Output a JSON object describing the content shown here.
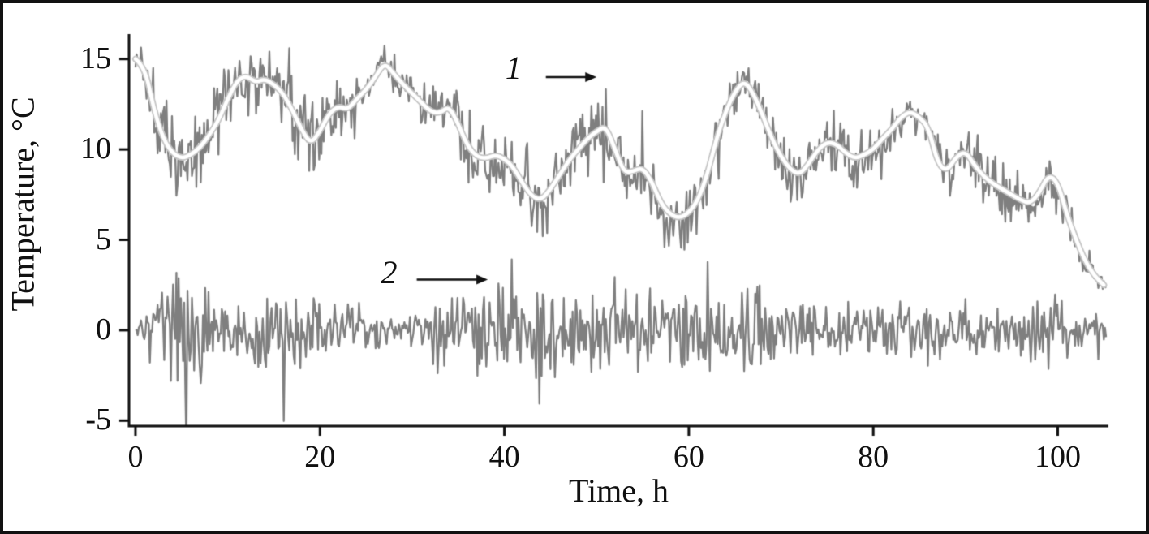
{
  "chart_data": {
    "type": "line",
    "title": "",
    "xlabel": "Time, h",
    "ylabel": "Temperature, °C",
    "xlim": [
      -0.7,
      105.5
    ],
    "ylim": [
      -5.3,
      16.2
    ],
    "x_ticks": [
      0,
      20,
      40,
      60,
      80,
      100
    ],
    "y_ticks": [
      -5,
      0,
      5,
      10,
      15
    ],
    "grid": false,
    "legend": "none",
    "axis_color": "#111111",
    "background": "#ffffff",
    "series": [
      {
        "name": "1",
        "description": "raw noisy temperature signal fluctuating around its smoothed trend",
        "color": "#7f7f7f",
        "seed": 1337,
        "trend": [
          [
            0,
            15
          ],
          [
            1,
            14.6
          ],
          [
            2,
            12.2
          ],
          [
            3,
            10.6
          ],
          [
            4,
            9.8
          ],
          [
            5,
            9.5
          ],
          [
            6,
            9.7
          ],
          [
            7,
            10.1
          ],
          [
            8,
            10.8
          ],
          [
            9,
            11.6
          ],
          [
            10,
            12.8
          ],
          [
            11,
            13.8
          ],
          [
            12,
            14.1
          ],
          [
            13,
            13.7
          ],
          [
            14,
            13.9
          ],
          [
            15,
            13.6
          ],
          [
            16,
            13.1
          ],
          [
            17,
            12.2
          ],
          [
            18,
            11.1
          ],
          [
            19,
            10.3
          ],
          [
            20,
            11
          ],
          [
            21,
            12
          ],
          [
            22,
            12.4
          ],
          [
            23,
            12.2
          ],
          [
            24,
            12.8
          ],
          [
            25,
            13.3
          ],
          [
            26,
            14
          ],
          [
            27,
            14.8
          ],
          [
            28,
            14.2
          ],
          [
            29,
            13.6
          ],
          [
            30,
            13.1
          ],
          [
            31,
            12.6
          ],
          [
            32,
            12.1
          ],
          [
            33,
            12
          ],
          [
            34,
            12.4
          ],
          [
            35,
            11.4
          ],
          [
            36,
            10.2
          ],
          [
            37,
            9.6
          ],
          [
            38,
            9.5
          ],
          [
            39,
            9.7
          ],
          [
            40,
            9.5
          ],
          [
            41,
            9
          ],
          [
            42,
            8.1
          ],
          [
            43,
            7.4
          ],
          [
            44,
            7.2
          ],
          [
            45,
            7.8
          ],
          [
            46,
            8.6
          ],
          [
            47,
            9.4
          ],
          [
            48,
            10
          ],
          [
            49,
            10.6
          ],
          [
            50,
            11
          ],
          [
            51,
            11.3
          ],
          [
            52,
            10
          ],
          [
            53,
            8.7
          ],
          [
            54,
            8.8
          ],
          [
            55,
            9
          ],
          [
            56,
            8.2
          ],
          [
            57,
            7
          ],
          [
            58,
            6.4
          ],
          [
            59,
            6.2
          ],
          [
            60,
            6.5
          ],
          [
            61,
            7.2
          ],
          [
            62,
            8.6
          ],
          [
            63,
            10.6
          ],
          [
            64,
            12.1
          ],
          [
            65,
            13.2
          ],
          [
            66,
            13.8
          ],
          [
            67,
            13.1
          ],
          [
            68,
            11.9
          ],
          [
            69,
            10.6
          ],
          [
            70,
            9.6
          ],
          [
            71,
            8.9
          ],
          [
            72,
            8.6
          ],
          [
            73,
            9.2
          ],
          [
            74,
            10
          ],
          [
            75,
            10.4
          ],
          [
            76,
            10.3
          ],
          [
            77,
            9.8
          ],
          [
            78,
            9.5
          ],
          [
            79,
            9.7
          ],
          [
            80,
            10
          ],
          [
            81,
            10.6
          ],
          [
            82,
            11.1
          ],
          [
            83,
            11.8
          ],
          [
            84,
            12.1
          ],
          [
            85,
            11.8
          ],
          [
            86,
            11.2
          ],
          [
            87,
            9.2
          ],
          [
            88,
            8.8
          ],
          [
            89,
            9.6
          ],
          [
            90,
            9.9
          ],
          [
            91,
            9.1
          ],
          [
            92,
            8.5
          ],
          [
            93,
            8.1
          ],
          [
            94,
            7.8
          ],
          [
            95,
            7.5
          ],
          [
            96,
            7.2
          ],
          [
            97,
            7
          ],
          [
            98,
            7.6
          ],
          [
            99,
            8.6
          ],
          [
            100,
            8.2
          ],
          [
            101,
            6.4
          ],
          [
            102,
            5
          ],
          [
            103,
            3.8
          ],
          [
            104,
            3
          ],
          [
            105,
            2.5
          ]
        ],
        "noise_envelope": [
          [
            0,
            1.5
          ],
          [
            2,
            2.8
          ],
          [
            4,
            3.2
          ],
          [
            6,
            3
          ],
          [
            8,
            2.8
          ],
          [
            10,
            2.4
          ],
          [
            13,
            1.6
          ],
          [
            16,
            2
          ],
          [
            18,
            2.4
          ],
          [
            20,
            2.2
          ],
          [
            23,
            1.4
          ],
          [
            26,
            1
          ],
          [
            28,
            1.2
          ],
          [
            30,
            0.8
          ],
          [
            32,
            1.8
          ],
          [
            34,
            1.6
          ],
          [
            36,
            2.2
          ],
          [
            39,
            2.4
          ],
          [
            43,
            2.6
          ],
          [
            46,
            2.2
          ],
          [
            49,
            2.2
          ],
          [
            52,
            2.4
          ],
          [
            55,
            2
          ],
          [
            58,
            2.2
          ],
          [
            61,
            2
          ],
          [
            64,
            1.6
          ],
          [
            66,
            1.2
          ],
          [
            68,
            1.6
          ],
          [
            71,
            2.2
          ],
          [
            74,
            1.8
          ],
          [
            77,
            2.1
          ],
          [
            80,
            1.8
          ],
          [
            83,
            1.4
          ],
          [
            85,
            1.2
          ],
          [
            87,
            1.6
          ],
          [
            89,
            1
          ],
          [
            91,
            1.8
          ],
          [
            93,
            2
          ],
          [
            95,
            1.6
          ],
          [
            97,
            1.4
          ],
          [
            99,
            1.3
          ],
          [
            100,
            2.4
          ],
          [
            101,
            2
          ],
          [
            102,
            1.4
          ],
          [
            103,
            1
          ],
          [
            105,
            0.6
          ]
        ]
      },
      {
        "name": "1 smoothed",
        "description": "smooth white moving-average curve drawn over series 1",
        "color": "#ffffff",
        "outline_color": "#c6c6c6",
        "uses_trend_of_series": "1"
      },
      {
        "name": "2",
        "description": "temperature fluctuation signal centred on 0 °C",
        "color": "#7f7f7f",
        "seed": 4242,
        "trend": [
          [
            0,
            0
          ],
          [
            105,
            0
          ]
        ],
        "noise_envelope": [
          [
            0,
            0.7
          ],
          [
            2,
            2
          ],
          [
            4,
            3.6
          ],
          [
            5,
            4.6
          ],
          [
            6,
            4.2
          ],
          [
            7,
            3.4
          ],
          [
            9,
            2.4
          ],
          [
            12,
            1.8
          ],
          [
            14,
            2
          ],
          [
            17,
            2.6
          ],
          [
            19,
            2.2
          ],
          [
            21,
            1.8
          ],
          [
            24,
            1.5
          ],
          [
            27,
            1
          ],
          [
            29,
            0.5
          ],
          [
            31,
            1.6
          ],
          [
            33,
            3
          ],
          [
            35,
            2
          ],
          [
            38,
            2.2
          ],
          [
            41,
            2.6
          ],
          [
            44,
            2.8
          ],
          [
            47,
            2.4
          ],
          [
            50,
            2.5
          ],
          [
            52,
            2.8
          ],
          [
            55,
            2.2
          ],
          [
            58,
            2.6
          ],
          [
            60,
            3
          ],
          [
            63,
            2.4
          ],
          [
            66,
            3
          ],
          [
            69,
            2
          ],
          [
            72,
            1.8
          ],
          [
            75,
            1.5
          ],
          [
            78,
            1.8
          ],
          [
            81,
            1.5
          ],
          [
            84,
            2.1
          ],
          [
            87,
            1.8
          ],
          [
            90,
            1.5
          ],
          [
            93,
            1.2
          ],
          [
            96,
            1.5
          ],
          [
            98,
            2.6
          ],
          [
            100,
            2.2
          ],
          [
            102,
            1.2
          ],
          [
            105,
            0.8
          ]
        ]
      }
    ],
    "annotations": [
      {
        "label": "1",
        "label_t": 41,
        "label_T": 14.4,
        "arrow_from_t": 44.5,
        "arrow_to_t": 50,
        "arrow_T": 14.0
      },
      {
        "label": "2",
        "label_t": 27.5,
        "label_T": 3.1,
        "arrow_from_t": 30.5,
        "arrow_to_t": 38.2,
        "arrow_T": 2.8
      }
    ]
  }
}
